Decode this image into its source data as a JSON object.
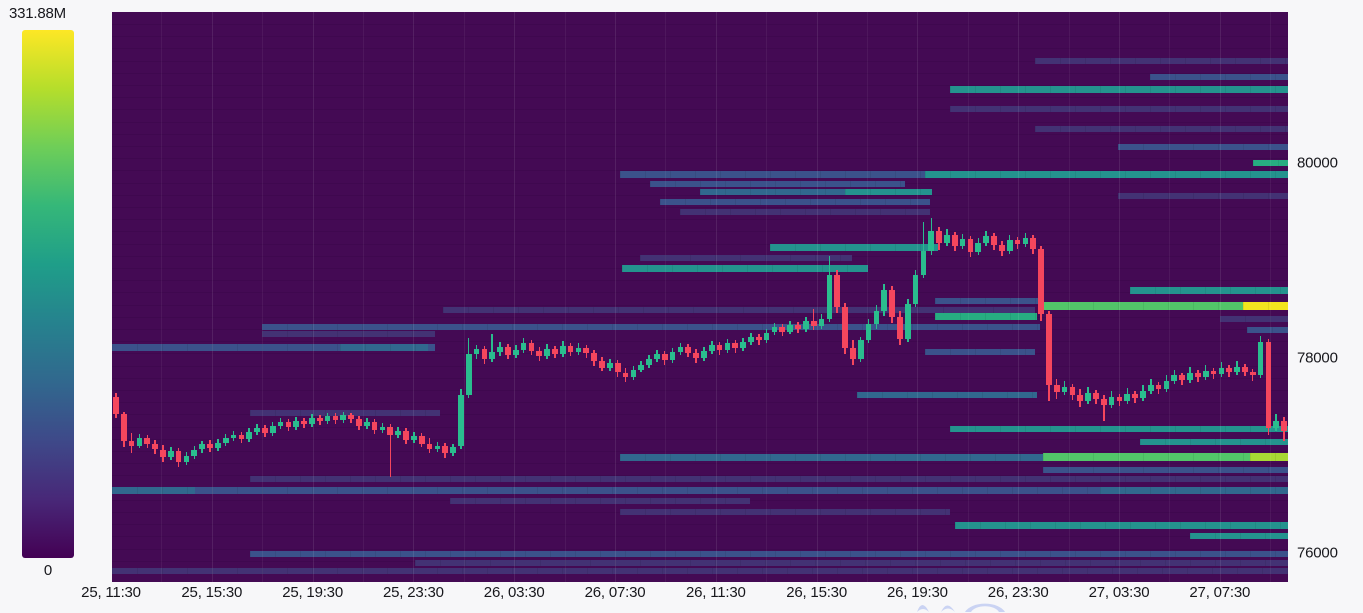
{
  "colorbar": {
    "max_label": "331.88M",
    "min_label": "0",
    "gradient": [
      "#fde725",
      "#b5de2b",
      "#6ece58",
      "#35b779",
      "#1f9e89",
      "#26828e",
      "#31688e",
      "#3e4989",
      "#482878",
      "#440154"
    ]
  },
  "chart_data": {
    "type": "heatmap",
    "overlay": "candlestick",
    "title": "",
    "y_axis": {
      "range": [
        75700,
        81550
      ],
      "ticks": [
        {
          "label": "80000",
          "value": 80000
        },
        {
          "label": "78000",
          "value": 78000
        },
        {
          "label": "76000",
          "value": 76000
        }
      ]
    },
    "x_axis": {
      "tick_labels": [
        "25, 11:30",
        "25, 15:30",
        "25, 19:30",
        "25, 23:30",
        "26, 03:30",
        "26, 07:30",
        "26, 11:30",
        "26, 15:30",
        "26, 19:30",
        "26, 23:30",
        "27, 03:30",
        "27, 07:30"
      ]
    },
    "colorbar_scale": {
      "min_label": "0",
      "max_label": "331.88M"
    },
    "palette": {
      "bg": "#440a54",
      "b1": "#433274",
      "b2": "#3b528b",
      "b3": "#31688e",
      "t": "#24938e",
      "t2": "#27ad81",
      "g": "#52c569",
      "gy": "#a8d934",
      "y": "#f2e51f",
      "up": "#2abd8e",
      "down": "#f5465d"
    },
    "liquidity_bands": [
      [
        81050,
        6,
        1035,
        1288,
        "b1"
      ],
      [
        80880,
        6,
        1150,
        1288,
        "b2"
      ],
      [
        80760,
        7,
        950,
        1288,
        "t"
      ],
      [
        80560,
        6,
        950,
        1288,
        "b1"
      ],
      [
        80350,
        6,
        1035,
        1288,
        "b1"
      ],
      [
        80160,
        6,
        1118,
        1288,
        "b2"
      ],
      [
        80000,
        6,
        1253,
        1288,
        "t2"
      ],
      [
        79880,
        7,
        620,
        925,
        "b2"
      ],
      [
        79880,
        7,
        925,
        1288,
        "t"
      ],
      [
        79790,
        6,
        650,
        905,
        "b2"
      ],
      [
        79700,
        6,
        700,
        845,
        "b3"
      ],
      [
        79700,
        6,
        845,
        932,
        "t"
      ],
      [
        79660,
        6,
        1118,
        1288,
        "b1"
      ],
      [
        79600,
        6,
        660,
        930,
        "b2"
      ],
      [
        79500,
        6,
        680,
        930,
        "b1"
      ],
      [
        79130,
        7,
        770,
        938,
        "t"
      ],
      [
        79030,
        6,
        640,
        852,
        "b1"
      ],
      [
        78920,
        7,
        622,
        868,
        "t"
      ],
      [
        78690,
        7,
        1130,
        1288,
        "t"
      ],
      [
        78580,
        6,
        935,
        1043,
        "b2"
      ],
      [
        78530,
        8,
        1043,
        1243,
        "g"
      ],
      [
        78530,
        8,
        1243,
        1288,
        "y"
      ],
      [
        78490,
        6,
        443,
        1035,
        "b1"
      ],
      [
        78430,
        7,
        935,
        1037,
        "t2"
      ],
      [
        78400,
        6,
        1220,
        1288,
        "b1"
      ],
      [
        78320,
        6,
        262,
        1040,
        "b2"
      ],
      [
        78290,
        6,
        1247,
        1288,
        "b2"
      ],
      [
        78250,
        6,
        262,
        435,
        "b1"
      ],
      [
        78110,
        7,
        112,
        435,
        "b2"
      ],
      [
        78110,
        7,
        340,
        428,
        "b3"
      ],
      [
        78060,
        6,
        925,
        1035,
        "b2"
      ],
      [
        77615,
        6,
        857,
        1037,
        "b3"
      ],
      [
        77440,
        6,
        250,
        440,
        "b1"
      ],
      [
        77270,
        6,
        950,
        1288,
        "t"
      ],
      [
        77140,
        6,
        1140,
        1288,
        "t"
      ],
      [
        76980,
        7,
        620,
        1043,
        "b3"
      ],
      [
        76980,
        8,
        1043,
        1250,
        "g"
      ],
      [
        76980,
        8,
        1250,
        1288,
        "gy"
      ],
      [
        76850,
        6,
        1043,
        1288,
        "b2"
      ],
      [
        76760,
        6,
        250,
        1288,
        "b1"
      ],
      [
        76640,
        7,
        112,
        1288,
        "b2"
      ],
      [
        76640,
        7,
        112,
        195,
        "b3"
      ],
      [
        76640,
        7,
        1100,
        1288,
        "b3"
      ],
      [
        76530,
        6,
        450,
        750,
        "b1"
      ],
      [
        76420,
        6,
        620,
        950,
        "b1"
      ],
      [
        76280,
        7,
        955,
        1288,
        "t"
      ],
      [
        76170,
        6,
        1190,
        1288,
        "t"
      ],
      [
        75990,
        6,
        250,
        1288,
        "b2"
      ],
      [
        75900,
        6,
        415,
        1288,
        "b1"
      ],
      [
        75810,
        6,
        112,
        1288,
        "b1"
      ]
    ],
    "candles_ohlc": [
      [
        77600,
        77640,
        77380,
        77420
      ],
      [
        77420,
        77450,
        77090,
        77150
      ],
      [
        77150,
        77230,
        77020,
        77100
      ],
      [
        77100,
        77220,
        77070,
        77180
      ],
      [
        77180,
        77210,
        77080,
        77120
      ],
      [
        77120,
        77160,
        77010,
        77060
      ],
      [
        77060,
        77110,
        76930,
        76980
      ],
      [
        76980,
        77090,
        76950,
        77050
      ],
      [
        77050,
        77080,
        76880,
        76930
      ],
      [
        76930,
        77030,
        76900,
        76990
      ],
      [
        76990,
        77100,
        76960,
        77060
      ],
      [
        77060,
        77150,
        77020,
        77120
      ],
      [
        77120,
        77160,
        77030,
        77070
      ],
      [
        77070,
        77170,
        77040,
        77130
      ],
      [
        77130,
        77220,
        77100,
        77180
      ],
      [
        77180,
        77250,
        77150,
        77210
      ],
      [
        77210,
        77240,
        77130,
        77170
      ],
      [
        77170,
        77280,
        77140,
        77240
      ],
      [
        77240,
        77320,
        77210,
        77280
      ],
      [
        77280,
        77310,
        77190,
        77230
      ],
      [
        77230,
        77340,
        77200,
        77300
      ],
      [
        77300,
        77380,
        77270,
        77340
      ],
      [
        77340,
        77370,
        77250,
        77290
      ],
      [
        77290,
        77390,
        77260,
        77350
      ],
      [
        77350,
        77380,
        77280,
        77320
      ],
      [
        77320,
        77420,
        77290,
        77380
      ],
      [
        77380,
        77410,
        77310,
        77350
      ],
      [
        77350,
        77440,
        77320,
        77400
      ],
      [
        77400,
        77430,
        77320,
        77360
      ],
      [
        77360,
        77450,
        77330,
        77410
      ],
      [
        77410,
        77440,
        77330,
        77370
      ],
      [
        77370,
        77400,
        77260,
        77300
      ],
      [
        77300,
        77380,
        77270,
        77340
      ],
      [
        77340,
        77370,
        77220,
        77260
      ],
      [
        77260,
        77330,
        77230,
        77290
      ],
      [
        77290,
        77320,
        76780,
        77210
      ],
      [
        77210,
        77290,
        77180,
        77250
      ],
      [
        77250,
        77280,
        77120,
        77160
      ],
      [
        77160,
        77240,
        77130,
        77200
      ],
      [
        77200,
        77230,
        77080,
        77120
      ],
      [
        77120,
        77180,
        77020,
        77060
      ],
      [
        77060,
        77140,
        77030,
        77100
      ],
      [
        77100,
        77130,
        76970,
        77020
      ],
      [
        77020,
        77120,
        76990,
        77090
      ],
      [
        77090,
        77680,
        77060,
        77620
      ],
      [
        77620,
        78200,
        77590,
        78040
      ],
      [
        78040,
        78130,
        77990,
        78090
      ],
      [
        78090,
        78120,
        77940,
        77990
      ],
      [
        77990,
        78250,
        77960,
        78060
      ],
      [
        78060,
        78160,
        78020,
        78110
      ],
      [
        78110,
        78140,
        77990,
        78030
      ],
      [
        78030,
        78130,
        78000,
        78080
      ],
      [
        78080,
        78200,
        78050,
        78150
      ],
      [
        78150,
        78180,
        78030,
        78070
      ],
      [
        78070,
        78110,
        77970,
        78020
      ],
      [
        78020,
        78140,
        77990,
        78090
      ],
      [
        78090,
        78120,
        78000,
        78040
      ],
      [
        78040,
        78170,
        78010,
        78120
      ],
      [
        78120,
        78150,
        78020,
        78060
      ],
      [
        78060,
        78150,
        78030,
        78100
      ],
      [
        78100,
        78130,
        78000,
        78050
      ],
      [
        78050,
        78080,
        77920,
        77970
      ],
      [
        77970,
        78010,
        77860,
        77900
      ],
      [
        77900,
        77990,
        77870,
        77950
      ],
      [
        77950,
        77980,
        77800,
        77850
      ],
      [
        77850,
        77900,
        77750,
        77800
      ],
      [
        77800,
        77920,
        77770,
        77880
      ],
      [
        77880,
        77970,
        77850,
        77930
      ],
      [
        77930,
        78030,
        77900,
        77990
      ],
      [
        77990,
        78080,
        77960,
        78040
      ],
      [
        78040,
        78070,
        77930,
        77980
      ],
      [
        77980,
        78100,
        77950,
        78060
      ],
      [
        78060,
        78150,
        78030,
        78110
      ],
      [
        78110,
        78140,
        78010,
        78050
      ],
      [
        78050,
        78090,
        77950,
        78000
      ],
      [
        78000,
        78110,
        77970,
        78070
      ],
      [
        78070,
        78170,
        78040,
        78130
      ],
      [
        78130,
        78160,
        78030,
        78080
      ],
      [
        78080,
        78190,
        78050,
        78150
      ],
      [
        78150,
        78180,
        78050,
        78100
      ],
      [
        78100,
        78200,
        78070,
        78160
      ],
      [
        78160,
        78260,
        78130,
        78220
      ],
      [
        78220,
        78250,
        78130,
        78180
      ],
      [
        78180,
        78300,
        78150,
        78260
      ],
      [
        78260,
        78360,
        78230,
        78320
      ],
      [
        78320,
        78350,
        78220,
        78270
      ],
      [
        78270,
        78380,
        78240,
        78340
      ],
      [
        78340,
        78370,
        78250,
        78300
      ],
      [
        78300,
        78420,
        78270,
        78380
      ],
      [
        78380,
        78500,
        78290,
        78330
      ],
      [
        78330,
        78450,
        78300,
        78400
      ],
      [
        78400,
        79050,
        78370,
        78850
      ],
      [
        78850,
        78900,
        78460,
        78520
      ],
      [
        78520,
        78560,
        78040,
        78100
      ],
      [
        78100,
        78180,
        77930,
        77990
      ],
      [
        77990,
        78220,
        77960,
        78180
      ],
      [
        78180,
        78400,
        78150,
        78350
      ],
      [
        78350,
        78540,
        78300,
        78480
      ],
      [
        78480,
        78760,
        78430,
        78700
      ],
      [
        78700,
        78740,
        78360,
        78420
      ],
      [
        78420,
        78480,
        78130,
        78190
      ],
      [
        78190,
        78600,
        78160,
        78550
      ],
      [
        78550,
        78900,
        78520,
        78850
      ],
      [
        78850,
        79400,
        78820,
        79100
      ],
      [
        79100,
        79440,
        79060,
        79300
      ],
      [
        79300,
        79340,
        79110,
        79180
      ],
      [
        79180,
        79320,
        79150,
        79260
      ],
      [
        79260,
        79290,
        79100,
        79150
      ],
      [
        79150,
        79270,
        79120,
        79220
      ],
      [
        79220,
        79250,
        79040,
        79090
      ],
      [
        79090,
        79230,
        79060,
        79180
      ],
      [
        79180,
        79300,
        79150,
        79250
      ],
      [
        79250,
        79280,
        79110,
        79160
      ],
      [
        79160,
        79200,
        79050,
        79100
      ],
      [
        79100,
        79260,
        79070,
        79210
      ],
      [
        79210,
        79240,
        79120,
        79170
      ],
      [
        79170,
        79280,
        79140,
        79230
      ],
      [
        79230,
        79260,
        79070,
        79120
      ],
      [
        79120,
        79150,
        78380,
        78450
      ],
      [
        78450,
        78480,
        77560,
        77720
      ],
      [
        77720,
        77780,
        77580,
        77650
      ],
      [
        77650,
        77760,
        77620,
        77700
      ],
      [
        77700,
        77730,
        77570,
        77620
      ],
      [
        77620,
        77680,
        77500,
        77560
      ],
      [
        77560,
        77700,
        77530,
        77640
      ],
      [
        77640,
        77670,
        77530,
        77580
      ],
      [
        77580,
        77620,
        77350,
        77520
      ],
      [
        77520,
        77660,
        77490,
        77600
      ],
      [
        77600,
        77630,
        77510,
        77560
      ],
      [
        77560,
        77690,
        77530,
        77630
      ],
      [
        77630,
        77660,
        77540,
        77590
      ],
      [
        77590,
        77720,
        77560,
        77660
      ],
      [
        77660,
        77780,
        77630,
        77720
      ],
      [
        77720,
        77750,
        77630,
        77680
      ],
      [
        77680,
        77820,
        77650,
        77760
      ],
      [
        77760,
        77880,
        77730,
        77820
      ],
      [
        77820,
        77850,
        77720,
        77770
      ],
      [
        77770,
        77910,
        77740,
        77850
      ],
      [
        77850,
        77880,
        77750,
        77800
      ],
      [
        77800,
        77930,
        77770,
        77870
      ],
      [
        77870,
        77900,
        77780,
        77830
      ],
      [
        77830,
        77960,
        77800,
        77900
      ],
      [
        77900,
        77930,
        77800,
        77850
      ],
      [
        77850,
        77970,
        77820,
        77910
      ],
      [
        77910,
        77940,
        77810,
        77860
      ],
      [
        77860,
        77890,
        77760,
        77820
      ],
      [
        77820,
        78230,
        77790,
        78160
      ],
      [
        78160,
        78190,
        77210,
        77280
      ],
      [
        77280,
        77420,
        77250,
        77350
      ],
      [
        77350,
        77390,
        77150,
        77250
      ]
    ]
  },
  "watermark": {
    "present": true,
    "color": "#bcc8f2"
  }
}
